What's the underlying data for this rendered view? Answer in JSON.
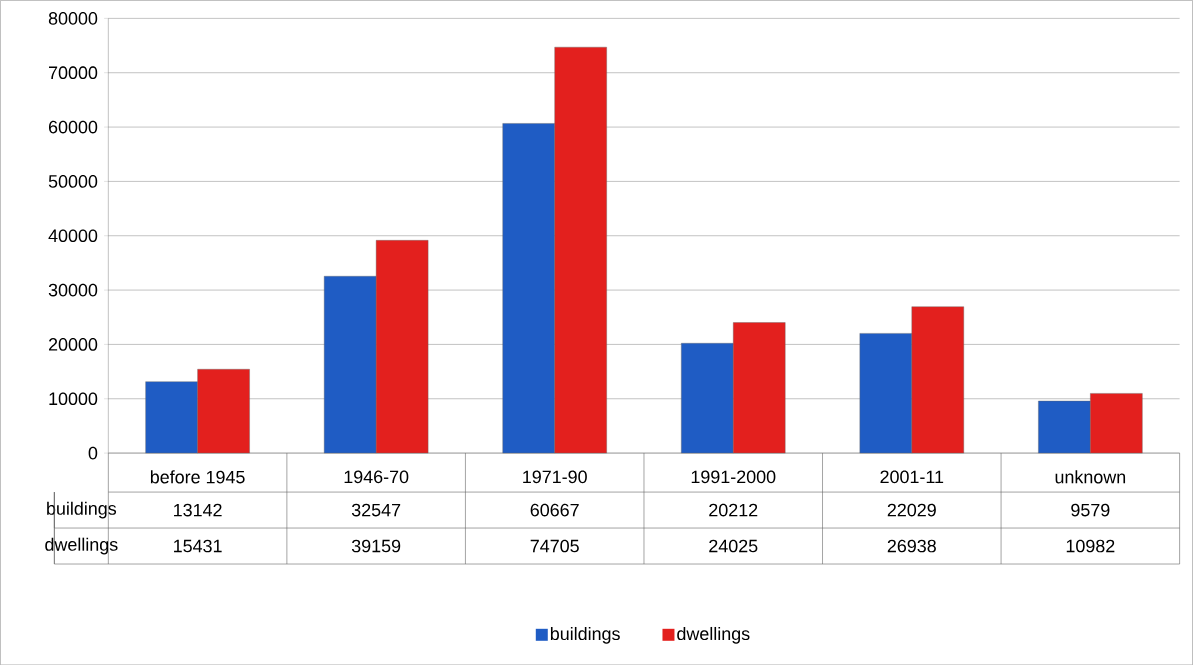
{
  "chart_data": {
    "type": "bar",
    "categories": [
      "before 1945",
      "1946-70",
      "1971-90",
      "1991-2000",
      "2001-11",
      "unknown"
    ],
    "series": [
      {
        "name": "buildings",
        "color": "#1f5cc4",
        "values": [
          13142,
          32547,
          60667,
          20212,
          22029,
          9579
        ],
        "value_labels": [
          "13142",
          "32547",
          "60667",
          "20212",
          "22029",
          "9579"
        ]
      },
      {
        "name": "dwellings",
        "color": "#e3201e",
        "values": [
          15431,
          39159,
          74705,
          24025,
          26938,
          10982
        ],
        "value_labels": [
          "15431",
          "39159",
          "74705",
          "24025",
          "26938",
          "10982"
        ]
      }
    ],
    "ylim": [
      0,
      80000
    ],
    "yticks": [
      0,
      10000,
      20000,
      30000,
      40000,
      50000,
      60000,
      70000,
      80000
    ],
    "grid": "y",
    "legend": "bottom"
  }
}
